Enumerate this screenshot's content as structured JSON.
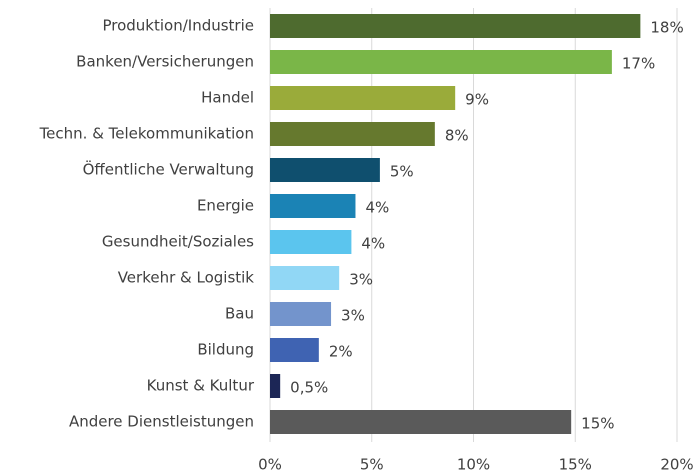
{
  "chart_data": {
    "type": "hbar",
    "categories": [
      "Produktion/Industrie",
      "Banken/Versicherungen",
      "Handel",
      "Techn. & Telekommunikation",
      "Öffentliche Verwaltung",
      "Energie",
      "Gesundheit/Soziales",
      "Verkehr & Logistik",
      "Bau",
      "Bildung",
      "Kunst & Kultur",
      "Andere Dienstleistungen"
    ],
    "values": [
      18.2,
      16.8,
      9.1,
      8.1,
      5.4,
      4.2,
      4.0,
      3.4,
      3.0,
      2.4,
      0.5,
      14.8
    ],
    "value_labels": [
      "18%",
      "17%",
      "9%",
      "8%",
      "5%",
      "4%",
      "4%",
      "3%",
      "3%",
      "2%",
      "0,5%",
      "15%"
    ],
    "colors": [
      "#4e6b2f",
      "#7ab648",
      "#9aab3a",
      "#66792e",
      "#0f4f6e",
      "#1b83b5",
      "#5bc5ee",
      "#91d7f5",
      "#7394cc",
      "#3f63b2",
      "#1c2656",
      "#5a5a5a"
    ],
    "xlim": [
      0,
      20
    ],
    "xticks": [
      {
        "value": 0,
        "label": "0%"
      },
      {
        "value": 5,
        "label": "5%"
      },
      {
        "value": 10,
        "label": "10%"
      },
      {
        "value": 15,
        "label": "15%"
      },
      {
        "value": 20,
        "label": "20%"
      }
    ],
    "grid": true
  }
}
